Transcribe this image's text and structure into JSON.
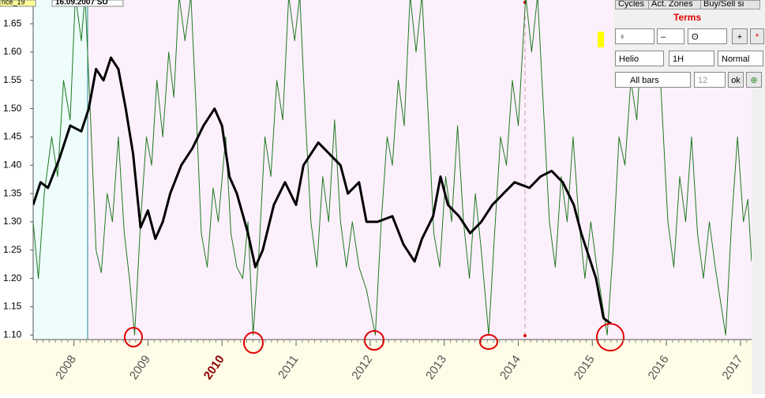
{
  "header": {
    "file": "rice_19",
    "date": "16.09.2007 SU"
  },
  "panel": {
    "tabs": [
      "Cycles",
      "Act. Zones",
      "Buy/Sell si"
    ],
    "title": "Terms",
    "planet1": "♀",
    "operator": "–",
    "planet2": "ʘ",
    "add": "+",
    "star": "*",
    "coord": "Helio",
    "step": "1H",
    "mode": "Normal",
    "bars": "All bars",
    "count": "12",
    "ok": "ok"
  },
  "chart_data": {
    "type": "line",
    "xlim": [
      2007.45,
      2017.15
    ],
    "xticks": [
      2008,
      2009,
      2010,
      2011,
      2012,
      2013,
      2014,
      2015,
      2016,
      2017
    ],
    "ylim": [
      1.092,
      1.692
    ],
    "yticks": [
      {
        "value": 1.1,
        "label": "1.10"
      },
      1.15,
      {
        "value": 1.2,
        "label": "1.20"
      },
      1.25,
      {
        "value": 1.3,
        "label": "1.30"
      },
      1.35,
      {
        "value": 1.4,
        "label": "1.40"
      },
      1.45,
      {
        "value": 1.5,
        "label": "1.50"
      },
      1.55,
      {
        "value": 1.6,
        "label": "1.60"
      },
      1.65
    ],
    "series": [
      {
        "name": "Price",
        "color": "#000000",
        "x": [
          2007.45,
          2007.55,
          2007.65,
          2007.8,
          2007.95,
          2008.1,
          2008.2,
          2008.3,
          2008.4,
          2008.5,
          2008.6,
          2008.7,
          2008.8,
          2008.9,
          2009.0,
          2009.1,
          2009.2,
          2009.3,
          2009.45,
          2009.6,
          2009.75,
          2009.9,
          2010.0,
          2010.1,
          2010.2,
          2010.35,
          2010.45,
          2010.55,
          2010.7,
          2010.85,
          2011.0,
          2011.1,
          2011.3,
          2011.45,
          2011.6,
          2011.7,
          2011.85,
          2011.95,
          2012.1,
          2012.3,
          2012.45,
          2012.6,
          2012.7,
          2012.85,
          2012.95,
          2013.05,
          2013.2,
          2013.35,
          2013.5,
          2013.65,
          2013.8,
          2013.95,
          2014.15,
          2014.3,
          2014.45,
          2014.6,
          2014.75,
          2014.85,
          2014.95,
          2015.05,
          2015.15,
          2015.25
        ],
        "values": [
          1.33,
          1.37,
          1.36,
          1.41,
          1.47,
          1.46,
          1.5,
          1.57,
          1.55,
          1.59,
          1.57,
          1.5,
          1.42,
          1.29,
          1.32,
          1.27,
          1.3,
          1.35,
          1.4,
          1.43,
          1.47,
          1.5,
          1.47,
          1.38,
          1.35,
          1.28,
          1.22,
          1.25,
          1.33,
          1.37,
          1.33,
          1.4,
          1.44,
          1.42,
          1.4,
          1.35,
          1.37,
          1.3,
          1.3,
          1.31,
          1.26,
          1.23,
          1.27,
          1.31,
          1.38,
          1.33,
          1.31,
          1.28,
          1.3,
          1.33,
          1.35,
          1.37,
          1.36,
          1.38,
          1.39,
          1.37,
          1.33,
          1.28,
          1.24,
          1.2,
          1.13,
          1.12
        ]
      },
      {
        "name": "Cycle",
        "color": "#1e7a1e",
        "x": [
          2007.45,
          2007.52,
          2007.6,
          2007.7,
          2007.78,
          2007.86,
          2007.95,
          2008.02,
          2008.1,
          2008.15,
          2008.22,
          2008.3,
          2008.37,
          2008.45,
          2008.52,
          2008.6,
          2008.68,
          2008.75,
          2008.82,
          2008.9,
          2008.98,
          2009.05,
          2009.12,
          2009.2,
          2009.28,
          2009.35,
          2009.42,
          2009.5,
          2009.58,
          2009.65,
          2009.72,
          2009.8,
          2009.88,
          2009.95,
          2010.05,
          2010.12,
          2010.2,
          2010.28,
          2010.35,
          2010.42,
          2010.5,
          2010.58,
          2010.66,
          2010.74,
          2010.82,
          2010.9,
          2010.98,
          2011.05,
          2011.12,
          2011.2,
          2011.28,
          2011.36,
          2011.44,
          2011.52,
          2011.6,
          2011.68,
          2011.76,
          2011.85,
          2011.95,
          2012.07,
          2012.15,
          2012.23,
          2012.3,
          2012.38,
          2012.46,
          2012.54,
          2012.62,
          2012.7,
          2012.78,
          2012.86,
          2012.94,
          2013.02,
          2013.1,
          2013.18,
          2013.26,
          2013.34,
          2013.42,
          2013.5,
          2013.6,
          2013.68,
          2013.76,
          2013.84,
          2013.92,
          2014.0,
          2014.1,
          2014.18,
          2014.26,
          2014.34,
          2014.42,
          2014.5,
          2014.58,
          2014.66,
          2014.74,
          2014.82,
          2014.9,
          2014.98,
          2015.06,
          2015.2,
          2015.28,
          2015.36,
          2015.44,
          2015.52,
          2015.6,
          2015.7,
          2015.78,
          2015.86,
          2015.94,
          2016.02,
          2016.1,
          2016.18,
          2016.26,
          2016.34,
          2016.42,
          2016.5,
          2016.58,
          2016.66,
          2016.8,
          2016.88,
          2016.96,
          2017.04,
          2017.1,
          2017.15
        ],
        "values": [
          1.3,
          1.2,
          1.35,
          1.45,
          1.38,
          1.55,
          1.48,
          1.7,
          1.62,
          1.7,
          1.5,
          1.25,
          1.21,
          1.35,
          1.3,
          1.45,
          1.28,
          1.2,
          1.1,
          1.3,
          1.45,
          1.4,
          1.55,
          1.45,
          1.6,
          1.52,
          1.7,
          1.62,
          1.7,
          1.5,
          1.28,
          1.22,
          1.36,
          1.3,
          1.45,
          1.28,
          1.22,
          1.2,
          1.3,
          1.1,
          1.25,
          1.45,
          1.38,
          1.55,
          1.48,
          1.7,
          1.62,
          1.7,
          1.5,
          1.3,
          1.22,
          1.38,
          1.3,
          1.48,
          1.3,
          1.22,
          1.3,
          1.22,
          1.18,
          1.1,
          1.3,
          1.45,
          1.4,
          1.55,
          1.47,
          1.7,
          1.6,
          1.7,
          1.5,
          1.28,
          1.22,
          1.38,
          1.3,
          1.47,
          1.3,
          1.2,
          1.35,
          1.25,
          1.1,
          1.28,
          1.45,
          1.4,
          1.55,
          1.47,
          1.7,
          1.6,
          1.7,
          1.5,
          1.3,
          1.22,
          1.38,
          1.3,
          1.45,
          1.3,
          1.2,
          1.3,
          1.22,
          1.1,
          1.25,
          1.45,
          1.4,
          1.55,
          1.48,
          1.7,
          1.62,
          1.7,
          1.5,
          1.3,
          1.22,
          1.38,
          1.3,
          1.45,
          1.28,
          1.2,
          1.3,
          1.22,
          1.1,
          1.3,
          1.45,
          1.3,
          1.34,
          1.23
        ]
      }
    ]
  }
}
